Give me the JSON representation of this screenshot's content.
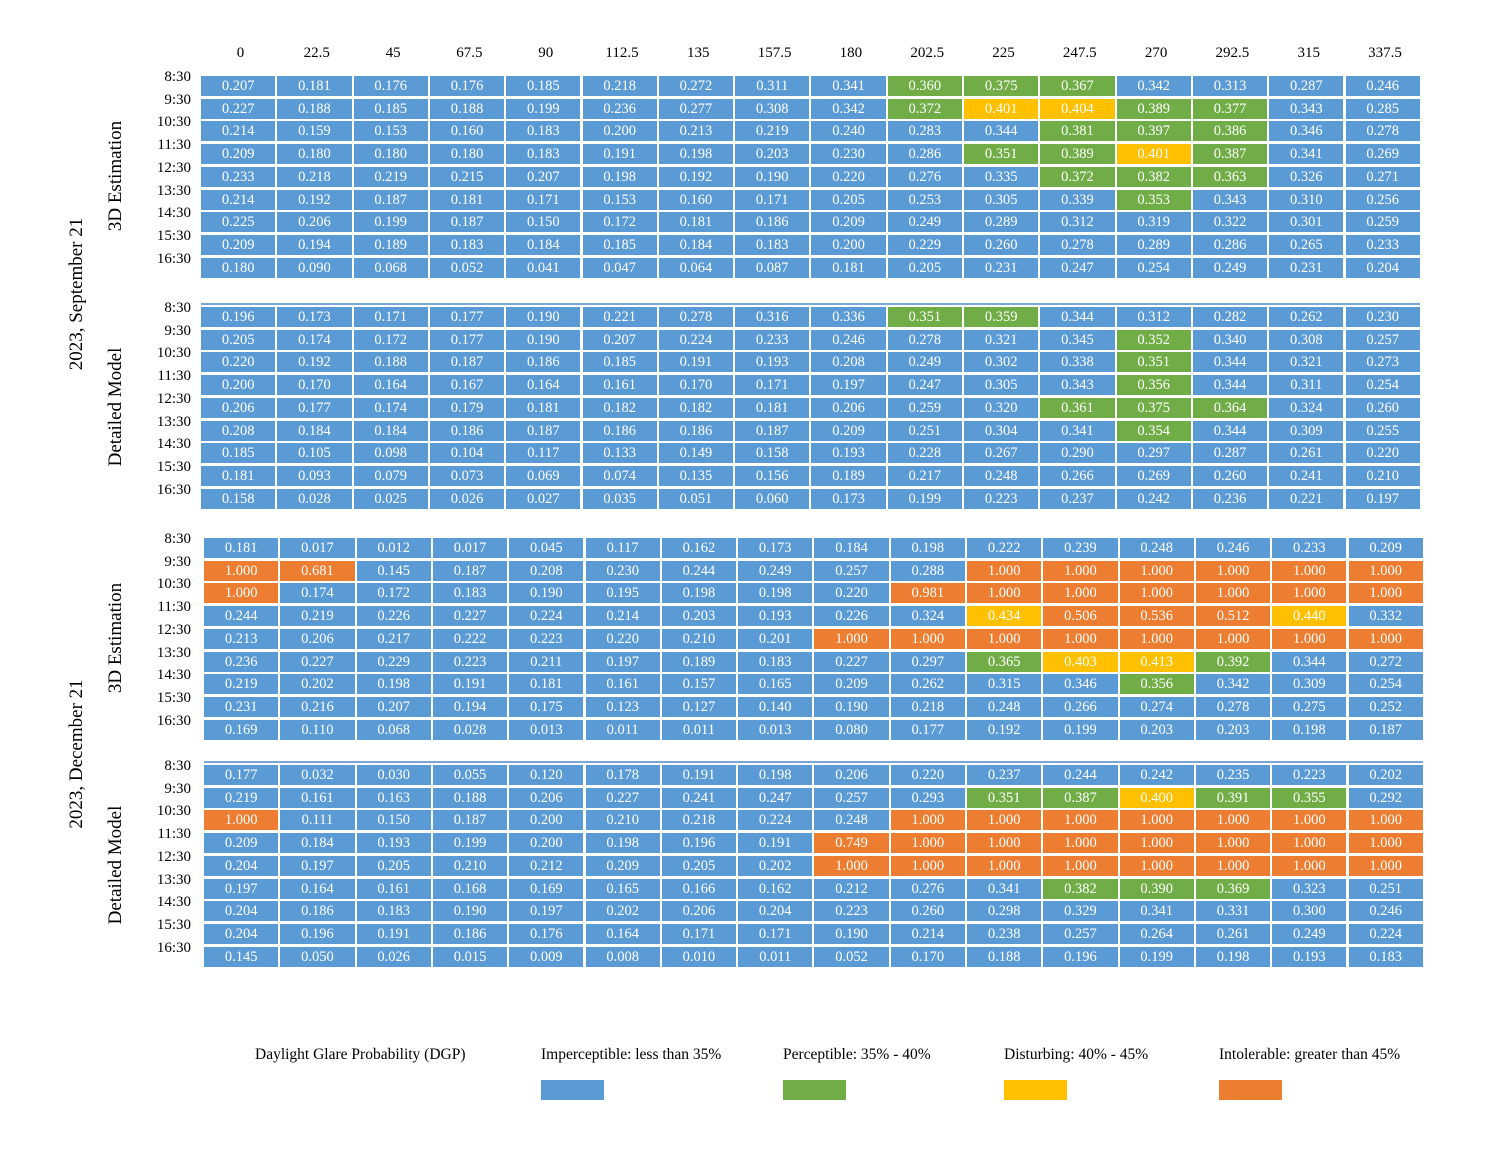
{
  "chart_data": {
    "type": "heatmap",
    "column_headers": [
      "0",
      "22.5",
      "45",
      "67.5",
      "90",
      "112.5",
      "135",
      "157.5",
      "180",
      "202.5",
      "225",
      "247.5",
      "270",
      "292.5",
      "315",
      "337.5"
    ],
    "row_headers": [
      "8:30",
      "9:30",
      "10:30",
      "11:30",
      "12:30",
      "13:30",
      "14:30",
      "15:30",
      "16:30"
    ],
    "groups": [
      {
        "date": "2023, September 21",
        "panels": [
          {
            "method": "3D Estimation",
            "values": [
              [
                "0.207",
                "0.181",
                "0.176",
                "0.176",
                "0.185",
                "0.218",
                "0.272",
                "0.311",
                "0.341",
                "0.360",
                "0.375",
                "0.367",
                "0.342",
                "0.313",
                "0.287",
                "0.246"
              ],
              [
                "0.227",
                "0.188",
                "0.185",
                "0.188",
                "0.199",
                "0.236",
                "0.277",
                "0.308",
                "0.342",
                "0.372",
                "0.401",
                "0.404",
                "0.389",
                "0.377",
                "0.343",
                "0.285"
              ],
              [
                "0.214",
                "0.159",
                "0.153",
                "0.160",
                "0.183",
                "0.200",
                "0.213",
                "0.219",
                "0.240",
                "0.283",
                "0.344",
                "0.381",
                "0.397",
                "0.386",
                "0.346",
                "0.278"
              ],
              [
                "0.209",
                "0.180",
                "0.180",
                "0.180",
                "0.183",
                "0.191",
                "0.198",
                "0.203",
                "0.230",
                "0.286",
                "0.351",
                "0.389",
                "0.401",
                "0.387",
                "0.341",
                "0.269"
              ],
              [
                "0.233",
                "0.218",
                "0.219",
                "0.215",
                "0.207",
                "0.198",
                "0.192",
                "0.190",
                "0.220",
                "0.276",
                "0.335",
                "0.372",
                "0.382",
                "0.363",
                "0.326",
                "0.271"
              ],
              [
                "0.214",
                "0.192",
                "0.187",
                "0.181",
                "0.171",
                "0.153",
                "0.160",
                "0.171",
                "0.205",
                "0.253",
                "0.305",
                "0.339",
                "0.353",
                "0.343",
                "0.310",
                "0.256"
              ],
              [
                "0.225",
                "0.206",
                "0.199",
                "0.187",
                "0.150",
                "0.172",
                "0.181",
                "0.186",
                "0.209",
                "0.249",
                "0.289",
                "0.312",
                "0.319",
                "0.322",
                "0.301",
                "0.259"
              ],
              [
                "0.209",
                "0.194",
                "0.189",
                "0.183",
                "0.184",
                "0.185",
                "0.184",
                "0.183",
                "0.200",
                "0.229",
                "0.260",
                "0.278",
                "0.289",
                "0.286",
                "0.265",
                "0.233"
              ],
              [
                "0.180",
                "0.090",
                "0.068",
                "0.052",
                "0.041",
                "0.047",
                "0.064",
                "0.087",
                "0.181",
                "0.205",
                "0.231",
                "0.247",
                "0.254",
                "0.249",
                "0.231",
                "0.204"
              ]
            ]
          },
          {
            "method": "Detailed Model",
            "values": [
              [
                "0.196",
                "0.173",
                "0.171",
                "0.177",
                "0.190",
                "0.221",
                "0.278",
                "0.316",
                "0.336",
                "0.351",
                "0.359",
                "0.344",
                "0.312",
                "0.282",
                "0.262",
                "0.230"
              ],
              [
                "0.205",
                "0.174",
                "0.172",
                "0.177",
                "0.190",
                "0.207",
                "0.224",
                "0.233",
                "0.246",
                "0.278",
                "0.321",
                "0.345",
                "0.352",
                "0.340",
                "0.308",
                "0.257"
              ],
              [
                "0.220",
                "0.192",
                "0.188",
                "0.187",
                "0.186",
                "0.185",
                "0.191",
                "0.193",
                "0.208",
                "0.249",
                "0.302",
                "0.338",
                "0.351",
                "0.344",
                "0.321",
                "0.273"
              ],
              [
                "0.200",
                "0.170",
                "0.164",
                "0.167",
                "0.164",
                "0.161",
                "0.170",
                "0.171",
                "0.197",
                "0.247",
                "0.305",
                "0.343",
                "0.356",
                "0.344",
                "0.311",
                "0.254"
              ],
              [
                "0.206",
                "0.177",
                "0.174",
                "0.179",
                "0.181",
                "0.182",
                "0.182",
                "0.181",
                "0.206",
                "0.259",
                "0.320",
                "0.361",
                "0.375",
                "0.364",
                "0.324",
                "0.260"
              ],
              [
                "0.208",
                "0.184",
                "0.184",
                "0.186",
                "0.187",
                "0.186",
                "0.186",
                "0.187",
                "0.209",
                "0.251",
                "0.304",
                "0.341",
                "0.354",
                "0.344",
                "0.309",
                "0.255"
              ],
              [
                "0.185",
                "0.105",
                "0.098",
                "0.104",
                "0.117",
                "0.133",
                "0.149",
                "0.158",
                "0.193",
                "0.228",
                "0.267",
                "0.290",
                "0.297",
                "0.287",
                "0.261",
                "0.220"
              ],
              [
                "0.181",
                "0.093",
                "0.079",
                "0.073",
                "0.069",
                "0.074",
                "0.135",
                "0.156",
                "0.189",
                "0.217",
                "0.248",
                "0.266",
                "0.269",
                "0.260",
                "0.241",
                "0.210"
              ],
              [
                "0.158",
                "0.028",
                "0.025",
                "0.026",
                "0.027",
                "0.035",
                "0.051",
                "0.060",
                "0.173",
                "0.199",
                "0.223",
                "0.237",
                "0.242",
                "0.236",
                "0.221",
                "0.197"
              ]
            ]
          }
        ]
      },
      {
        "date": "2023, December 21",
        "panels": [
          {
            "method": "3D Estimation",
            "values": [
              [
                "0.181",
                "0.017",
                "0.012",
                "0.017",
                "0.045",
                "0.117",
                "0.162",
                "0.173",
                "0.184",
                "0.198",
                "0.222",
                "0.239",
                "0.248",
                "0.246",
                "0.233",
                "0.209"
              ],
              [
                "1.000",
                "0.681",
                "0.145",
                "0.187",
                "0.208",
                "0.230",
                "0.244",
                "0.249",
                "0.257",
                "0.288",
                "1.000",
                "1.000",
                "1.000",
                "1.000",
                "1.000",
                "1.000"
              ],
              [
                "1.000",
                "0.174",
                "0.172",
                "0.183",
                "0.190",
                "0.195",
                "0.198",
                "0.198",
                "0.220",
                "0.981",
                "1.000",
                "1.000",
                "1.000",
                "1.000",
                "1.000",
                "1.000"
              ],
              [
                "0.244",
                "0.219",
                "0.226",
                "0.227",
                "0.224",
                "0.214",
                "0.203",
                "0.193",
                "0.226",
                "0.324",
                "0.434",
                "0.506",
                "0.536",
                "0.512",
                "0.440",
                "0.332"
              ],
              [
                "0.213",
                "0.206",
                "0.217",
                "0.222",
                "0.223",
                "0.220",
                "0.210",
                "0.201",
                "1.000",
                "1.000",
                "1.000",
                "1.000",
                "1.000",
                "1.000",
                "1.000",
                "1.000"
              ],
              [
                "0.236",
                "0.227",
                "0.229",
                "0.223",
                "0.211",
                "0.197",
                "0.189",
                "0.183",
                "0.227",
                "0.297",
                "0.365",
                "0.403",
                "0.413",
                "0.392",
                "0.344",
                "0.272"
              ],
              [
                "0.219",
                "0.202",
                "0.198",
                "0.191",
                "0.181",
                "0.161",
                "0.157",
                "0.165",
                "0.209",
                "0.262",
                "0.315",
                "0.346",
                "0.356",
                "0.342",
                "0.309",
                "0.254"
              ],
              [
                "0.231",
                "0.216",
                "0.207",
                "0.194",
                "0.175",
                "0.123",
                "0.127",
                "0.140",
                "0.190",
                "0.218",
                "0.248",
                "0.266",
                "0.274",
                "0.278",
                "0.275",
                "0.252"
              ],
              [
                "0.169",
                "0.110",
                "0.068",
                "0.028",
                "0.013",
                "0.011",
                "0.011",
                "0.013",
                "0.080",
                "0.177",
                "0.192",
                "0.199",
                "0.203",
                "0.203",
                "0.198",
                "0.187"
              ]
            ]
          },
          {
            "method": "Detailed Model",
            "values": [
              [
                "0.177",
                "0.032",
                "0.030",
                "0.055",
                "0.120",
                "0.178",
                "0.191",
                "0.198",
                "0.206",
                "0.220",
                "0.237",
                "0.244",
                "0.242",
                "0.235",
                "0.223",
                "0.202"
              ],
              [
                "0.219",
                "0.161",
                "0.163",
                "0.188",
                "0.206",
                "0.227",
                "0.241",
                "0.247",
                "0.257",
                "0.293",
                "0.351",
                "0.387",
                "0.400",
                "0.391",
                "0.355",
                "0.292"
              ],
              [
                "1.000",
                "0.111",
                "0.150",
                "0.187",
                "0.200",
                "0.210",
                "0.218",
                "0.224",
                "0.248",
                "1.000",
                "1.000",
                "1.000",
                "1.000",
                "1.000",
                "1.000",
                "1.000"
              ],
              [
                "0.209",
                "0.184",
                "0.193",
                "0.199",
                "0.200",
                "0.198",
                "0.196",
                "0.191",
                "0.749",
                "1.000",
                "1.000",
                "1.000",
                "1.000",
                "1.000",
                "1.000",
                "1.000"
              ],
              [
                "0.204",
                "0.197",
                "0.205",
                "0.210",
                "0.212",
                "0.209",
                "0.205",
                "0.202",
                "1.000",
                "1.000",
                "1.000",
                "1.000",
                "1.000",
                "1.000",
                "1.000",
                "1.000"
              ],
              [
                "0.197",
                "0.164",
                "0.161",
                "0.168",
                "0.169",
                "0.165",
                "0.166",
                "0.162",
                "0.212",
                "0.276",
                "0.341",
                "0.382",
                "0.390",
                "0.369",
                "0.323",
                "0.251"
              ],
              [
                "0.204",
                "0.186",
                "0.183",
                "0.190",
                "0.197",
                "0.202",
                "0.206",
                "0.204",
                "0.223",
                "0.260",
                "0.298",
                "0.329",
                "0.341",
                "0.331",
                "0.300",
                "0.246"
              ],
              [
                "0.204",
                "0.196",
                "0.191",
                "0.186",
                "0.176",
                "0.164",
                "0.171",
                "0.171",
                "0.190",
                "0.214",
                "0.238",
                "0.257",
                "0.264",
                "0.261",
                "0.249",
                "0.224"
              ],
              [
                "0.145",
                "0.050",
                "0.026",
                "0.015",
                "0.009",
                "0.008",
                "0.010",
                "0.011",
                "0.052",
                "0.170",
                "0.188",
                "0.196",
                "0.199",
                "0.198",
                "0.193",
                "0.183"
              ]
            ]
          }
        ]
      }
    ],
    "legend": {
      "title": "Daylight Glare Probability (DGP)",
      "placement": "bottom",
      "categories": [
        {
          "label": "Imperceptible: less than 35%",
          "max": 0.35,
          "color": "#5b9bd5"
        },
        {
          "label": "Perceptible: 35% - 40%",
          "max": 0.4,
          "color": "#70ad47"
        },
        {
          "label": "Disturbing: 40% - 45%",
          "max": 0.45,
          "color": "#ffc000"
        },
        {
          "label": "Intolerable: greater than 45%",
          "max": 10,
          "color": "#ed7d31"
        }
      ]
    }
  }
}
